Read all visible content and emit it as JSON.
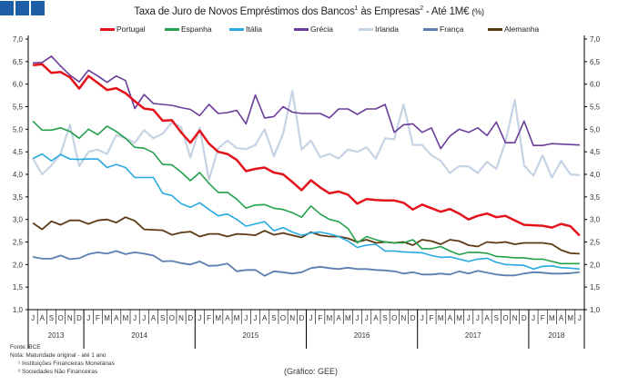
{
  "title": {
    "main": "Taxa de Juro de Novos Empréstimos dos Bancos",
    "sup1": "1",
    "mid": " às Empresas",
    "sup2": "2",
    "end": " -  Até 1M€ ",
    "unit": "(%)"
  },
  "footer": {
    "source": "Fonte: BCE",
    "note": "Nota: Maturidade original - até 1 ano",
    "fn1": "¹ Instituições Financeiras Monetárias",
    "fn2": "² Sociedades Não Financeiras",
    "credit": "(Gráfico:  GEE)"
  },
  "chart_data": {
    "type": "line",
    "ylim": [
      1.0,
      7.0
    ],
    "yticks": [
      "1,0",
      "1,5",
      "2,0",
      "2,5",
      "3,0",
      "3,5",
      "4,0",
      "4,5",
      "5,0",
      "5,5",
      "6,0",
      "6,5",
      "7,0"
    ],
    "months": [
      "J",
      "A",
      "S",
      "O",
      "N",
      "D",
      "J",
      "F",
      "M",
      "A",
      "M",
      "J",
      "J",
      "A",
      "S",
      "O",
      "N",
      "D",
      "J",
      "F",
      "M",
      "A",
      "M",
      "J",
      "J",
      "A",
      "S",
      "O",
      "N",
      "D",
      "J",
      "F",
      "M",
      "A",
      "M",
      "J",
      "J",
      "A",
      "S",
      "O",
      "N",
      "D",
      "J",
      "F",
      "M",
      "A",
      "M",
      "J",
      "J",
      "A",
      "S",
      "O",
      "N",
      "D",
      "J",
      "F",
      "M",
      "A",
      "M",
      "J"
    ],
    "years": [
      {
        "label": "2013",
        "months": 6
      },
      {
        "label": "2014",
        "months": 12
      },
      {
        "label": "2015",
        "months": 12
      },
      {
        "label": "2016",
        "months": 12
      },
      {
        "label": "2017",
        "months": 12
      },
      {
        "label": "2018",
        "months": 6
      }
    ],
    "series": [
      {
        "name": "Portugal",
        "color": "#e3121b",
        "width": 2.5,
        "values": [
          6.42,
          6.44,
          6.25,
          6.27,
          6.15,
          5.9,
          6.18,
          6.03,
          5.87,
          5.91,
          5.8,
          5.62,
          5.46,
          5.43,
          5.19,
          5.2,
          4.93,
          4.7,
          4.97,
          4.68,
          4.5,
          4.45,
          4.32,
          4.07,
          4.12,
          4.15,
          4.04,
          4.0,
          3.83,
          3.65,
          3.87,
          3.71,
          3.58,
          3.62,
          3.55,
          3.35,
          3.45,
          3.43,
          3.42,
          3.42,
          3.37,
          3.22,
          3.33,
          3.25,
          3.17,
          3.23,
          3.13,
          3.0,
          3.08,
          3.13,
          3.05,
          3.08,
          2.98,
          2.88,
          2.87,
          2.86,
          2.82,
          2.9,
          2.85,
          2.64
        ]
      },
      {
        "name": "Espanha",
        "color": "#22a04b",
        "width": 1.6,
        "values": [
          5.18,
          4.98,
          4.98,
          5.03,
          4.95,
          4.8,
          5.0,
          4.88,
          5.07,
          4.95,
          4.8,
          4.6,
          4.58,
          4.48,
          4.22,
          4.21,
          4.05,
          3.86,
          4.04,
          3.8,
          3.6,
          3.6,
          3.45,
          3.25,
          3.32,
          3.33,
          3.25,
          3.22,
          3.15,
          3.05,
          3.3,
          3.12,
          3.0,
          2.95,
          2.8,
          2.48,
          2.62,
          2.55,
          2.5,
          2.48,
          2.48,
          2.55,
          2.35,
          2.35,
          2.4,
          2.3,
          2.22,
          2.27,
          2.27,
          2.25,
          2.18,
          2.17,
          2.15,
          2.15,
          2.12,
          2.12,
          2.07,
          2.02,
          2.02,
          2.02
        ]
      },
      {
        "name": "Itália",
        "color": "#27a9e1",
        "width": 1.6,
        "values": [
          4.35,
          4.45,
          4.3,
          4.44,
          4.34,
          4.33,
          4.34,
          4.34,
          4.15,
          4.22,
          4.15,
          3.93,
          3.93,
          3.93,
          3.58,
          3.53,
          3.35,
          3.27,
          3.37,
          3.22,
          3.08,
          3.12,
          3.0,
          2.85,
          2.9,
          2.95,
          2.75,
          2.82,
          2.72,
          2.65,
          2.7,
          2.72,
          2.68,
          2.62,
          2.52,
          2.38,
          2.43,
          2.45,
          2.3,
          2.3,
          2.28,
          2.27,
          2.26,
          2.2,
          2.16,
          2.17,
          2.12,
          2.07,
          2.12,
          2.14,
          2.05,
          2.0,
          1.99,
          1.98,
          1.9,
          1.96,
          1.97,
          1.93,
          1.92,
          1.9
        ]
      },
      {
        "name": "Grécia",
        "color": "#6a3d9a",
        "width": 1.6,
        "values": [
          6.47,
          6.48,
          6.62,
          6.4,
          6.2,
          6.05,
          6.31,
          6.18,
          6.04,
          6.18,
          6.08,
          5.46,
          5.77,
          5.57,
          5.55,
          5.53,
          5.48,
          5.44,
          5.3,
          5.55,
          5.35,
          5.37,
          5.42,
          5.12,
          5.76,
          5.25,
          5.28,
          5.5,
          5.38,
          5.35,
          5.35,
          5.35,
          5.25,
          5.45,
          5.45,
          5.33,
          5.45,
          5.45,
          5.55,
          4.93,
          5.1,
          5.12,
          4.93,
          5.03,
          4.57,
          4.85,
          5.0,
          4.93,
          5.03,
          4.86,
          5.16,
          4.7,
          4.7,
          5.18,
          4.64,
          4.64,
          4.68,
          4.67,
          4.66,
          4.65
        ]
      },
      {
        "name": "Irlanda",
        "color": "#c5d3e4",
        "width": 2.2,
        "values": [
          4.35,
          4.0,
          4.2,
          4.45,
          5.1,
          4.18,
          4.5,
          4.55,
          4.45,
          4.87,
          4.8,
          4.7,
          4.98,
          4.8,
          4.9,
          5.15,
          5.05,
          4.37,
          5.03,
          3.88,
          4.58,
          4.75,
          4.58,
          4.56,
          4.65,
          5.0,
          4.4,
          4.9,
          5.85,
          4.55,
          4.75,
          4.38,
          4.45,
          4.35,
          4.55,
          4.5,
          4.6,
          4.35,
          4.8,
          4.78,
          5.55,
          4.65,
          4.65,
          4.42,
          4.3,
          4.03,
          4.18,
          4.18,
          4.03,
          4.28,
          4.12,
          4.72,
          5.65,
          4.2,
          3.97,
          4.42,
          3.93,
          4.3,
          4.0,
          3.98
        ]
      },
      {
        "name": "França",
        "color": "#5a7fb0",
        "width": 1.8,
        "values": [
          2.17,
          2.13,
          2.13,
          2.2,
          2.12,
          2.14,
          2.23,
          2.27,
          2.24,
          2.3,
          2.23,
          2.27,
          2.24,
          2.2,
          2.07,
          2.08,
          2.03,
          2.0,
          2.07,
          1.97,
          1.98,
          2.02,
          1.85,
          1.88,
          1.88,
          1.75,
          1.85,
          1.83,
          1.8,
          1.83,
          1.92,
          1.95,
          1.92,
          1.9,
          1.93,
          1.9,
          1.9,
          1.88,
          1.87,
          1.85,
          1.8,
          1.83,
          1.78,
          1.78,
          1.8,
          1.78,
          1.85,
          1.8,
          1.86,
          1.82,
          1.78,
          1.76,
          1.76,
          1.8,
          1.83,
          1.82,
          1.8,
          1.8,
          1.81,
          1.83
        ]
      },
      {
        "name": "Alemanha",
        "color": "#5b3a12",
        "width": 1.8,
        "values": [
          2.92,
          2.78,
          2.96,
          2.88,
          2.98,
          2.98,
          2.9,
          2.98,
          3.0,
          2.93,
          3.05,
          2.97,
          2.78,
          2.77,
          2.76,
          2.66,
          2.71,
          2.73,
          2.62,
          2.68,
          2.68,
          2.62,
          2.68,
          2.67,
          2.65,
          2.75,
          2.66,
          2.7,
          2.65,
          2.6,
          2.72,
          2.65,
          2.62,
          2.62,
          2.58,
          2.5,
          2.55,
          2.48,
          2.5,
          2.48,
          2.5,
          2.43,
          2.55,
          2.52,
          2.45,
          2.55,
          2.52,
          2.43,
          2.4,
          2.5,
          2.48,
          2.5,
          2.45,
          2.48,
          2.48,
          2.48,
          2.45,
          2.32,
          2.25,
          2.24
        ]
      }
    ]
  }
}
